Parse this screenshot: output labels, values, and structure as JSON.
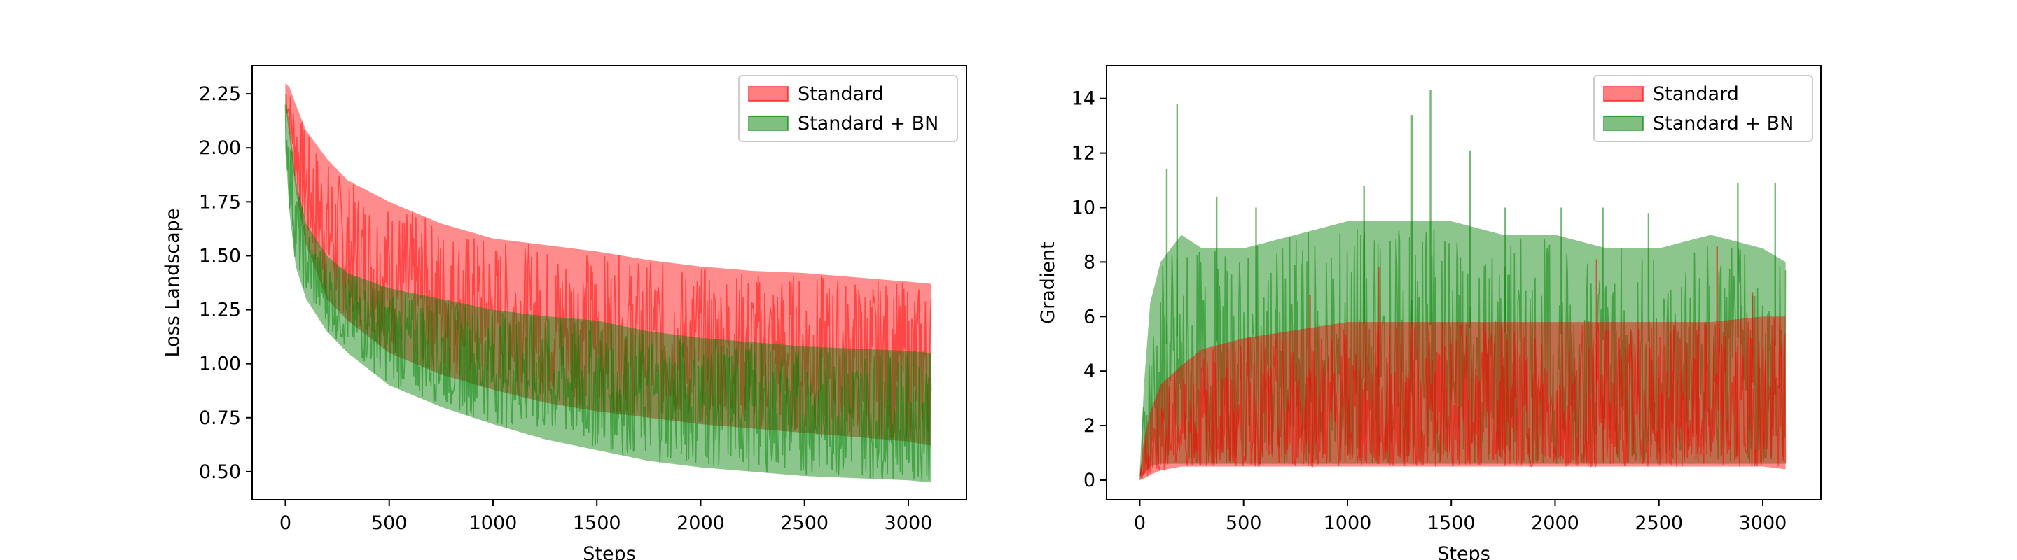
{
  "colors": {
    "standard": "#ff0000",
    "standard_bn": "#008000"
  },
  "chart_data": [
    {
      "type": "area",
      "xlabel": "Steps",
      "ylabel": "Loss Landscape",
      "xlim": [
        -160,
        3280
      ],
      "ylim": [
        0.37,
        2.38
      ],
      "xticks": [
        0,
        500,
        1000,
        1500,
        2000,
        2500,
        3000
      ],
      "yticks": [
        0.5,
        0.75,
        1.0,
        1.25,
        1.5,
        1.75,
        2.0,
        2.25
      ],
      "ytick_labels": [
        "0.50",
        "0.75",
        "1.00",
        "1.25",
        "1.50",
        "1.75",
        "2.00",
        "2.25"
      ],
      "legend_position": "top-right",
      "grid": false,
      "series": [
        {
          "name": "Standard",
          "color": "#ff0000",
          "x": [
            0,
            20,
            50,
            100,
            200,
            300,
            500,
            750,
            1000,
            1250,
            1500,
            1750,
            2000,
            2250,
            2500,
            2750,
            3000,
            3110
          ],
          "lower": [
            2.2,
            2.05,
            1.8,
            1.55,
            1.3,
            1.2,
            1.05,
            0.95,
            0.88,
            0.82,
            0.78,
            0.75,
            0.72,
            0.7,
            0.68,
            0.66,
            0.64,
            0.62
          ],
          "upper": [
            2.3,
            2.28,
            2.2,
            2.08,
            1.95,
            1.85,
            1.75,
            1.65,
            1.58,
            1.55,
            1.52,
            1.48,
            1.45,
            1.43,
            1.42,
            1.4,
            1.38,
            1.37
          ]
        },
        {
          "name": "Standard + BN",
          "color": "#008000",
          "x": [
            0,
            20,
            50,
            100,
            200,
            300,
            500,
            750,
            1000,
            1250,
            1500,
            1750,
            2000,
            2250,
            2500,
            2750,
            3000,
            3110
          ],
          "lower": [
            2.0,
            1.7,
            1.45,
            1.3,
            1.15,
            1.05,
            0.9,
            0.8,
            0.72,
            0.65,
            0.6,
            0.55,
            0.52,
            0.5,
            0.48,
            0.47,
            0.46,
            0.45
          ],
          "upper": [
            2.25,
            2.1,
            1.85,
            1.65,
            1.5,
            1.42,
            1.35,
            1.3,
            1.25,
            1.22,
            1.2,
            1.15,
            1.12,
            1.1,
            1.08,
            1.07,
            1.06,
            1.05
          ]
        }
      ]
    },
    {
      "type": "area",
      "xlabel": "Steps",
      "ylabel": "Gradient",
      "xlim": [
        -160,
        3280
      ],
      "ylim": [
        -0.72,
        15.2
      ],
      "xticks": [
        0,
        500,
        1000,
        1500,
        2000,
        2500,
        3000
      ],
      "yticks": [
        0,
        2,
        4,
        6,
        8,
        10,
        12,
        14
      ],
      "ytick_labels": [
        "0",
        "2",
        "4",
        "6",
        "8",
        "10",
        "12",
        "14"
      ],
      "legend_position": "top-right",
      "grid": false,
      "series": [
        {
          "name": "Standard + BN",
          "color": "#008000",
          "x": [
            0,
            20,
            50,
            100,
            200,
            300,
            500,
            750,
            1000,
            1250,
            1500,
            1750,
            2000,
            2250,
            2500,
            2750,
            3000,
            3110
          ],
          "lower": [
            0,
            0.2,
            0.5,
            0.6,
            0.6,
            0.6,
            0.6,
            0.6,
            0.6,
            0.6,
            0.6,
            0.6,
            0.6,
            0.6,
            0.6,
            0.6,
            0.6,
            0.6
          ],
          "upper": [
            0.3,
            3.5,
            6.5,
            8,
            9,
            8.5,
            8.5,
            9,
            9.5,
            9.5,
            9.5,
            9,
            9,
            8.5,
            8.5,
            9,
            8.5,
            8
          ],
          "peaks": [
            [
              180,
              13.8
            ],
            [
              130,
              11.4
            ],
            [
              370,
              10.4
            ],
            [
              560,
              10.0
            ],
            [
              1080,
              10.8
            ],
            [
              1310,
              13.4
            ],
            [
              1400,
              14.3
            ],
            [
              1590,
              12.1
            ],
            [
              1760,
              10.0
            ],
            [
              2030,
              10.0
            ],
            [
              2230,
              10.0
            ],
            [
              2450,
              9.8
            ],
            [
              2880,
              10.9
            ],
            [
              3060,
              10.9
            ]
          ]
        },
        {
          "name": "Standard",
          "color": "#ff0000",
          "x": [
            0,
            20,
            50,
            100,
            200,
            300,
            500,
            750,
            1000,
            1250,
            1500,
            1750,
            2000,
            2250,
            2500,
            2750,
            3000,
            3110
          ],
          "lower": [
            0,
            0.05,
            0.2,
            0.35,
            0.5,
            0.5,
            0.5,
            0.5,
            0.5,
            0.5,
            0.5,
            0.5,
            0.5,
            0.5,
            0.5,
            0.5,
            0.5,
            0.4
          ],
          "upper": [
            0.2,
            1.5,
            2.5,
            3.5,
            4.2,
            4.8,
            5.2,
            5.5,
            5.8,
            5.8,
            5.8,
            5.8,
            5.8,
            5.8,
            5.8,
            5.8,
            6.0,
            6.0
          ],
          "peaks": [
            [
              820,
              6.8
            ],
            [
              1150,
              7.8
            ],
            [
              2200,
              8.1
            ],
            [
              2780,
              8.6
            ],
            [
              2950,
              6.9
            ]
          ]
        }
      ]
    }
  ]
}
